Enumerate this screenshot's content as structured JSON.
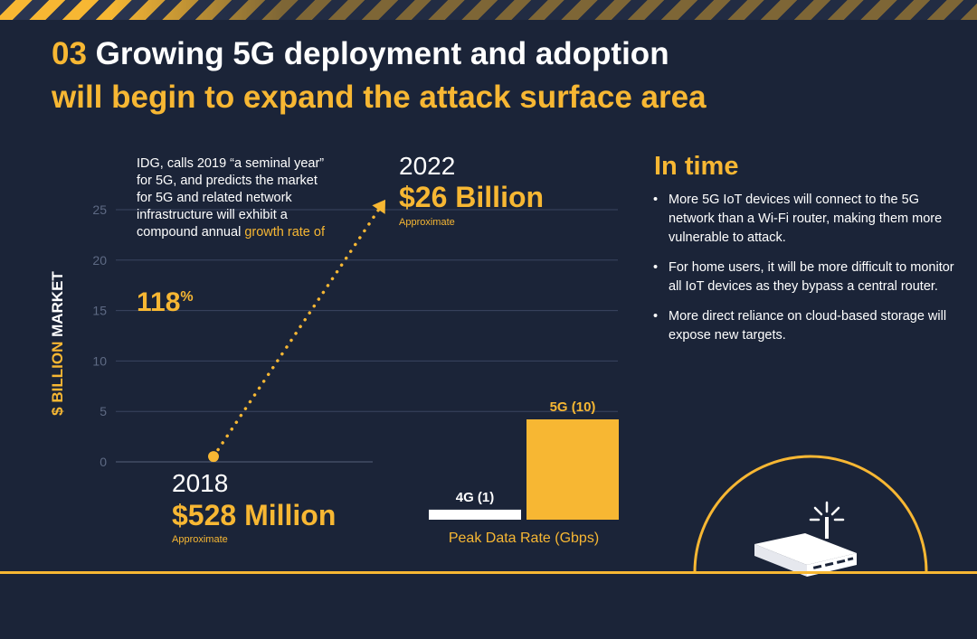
{
  "header": {
    "number": "03",
    "title_line1": "Growing 5G deployment and adoption",
    "title_line2": "will begin to expand the attack surface area"
  },
  "intro": {
    "text": "IDG, calls 2019 “a seminal year” for 5G, and predicts the market for 5G and related network infrastructure will exhibit a compound annual",
    "highlight": "growth rate of",
    "rate_value": "118",
    "rate_unit": "%"
  },
  "market": {
    "ylabel_prefix": "$ BILLION",
    "ylabel_suffix": "MARKET",
    "start_year": "2018",
    "start_amount": "$528 Million",
    "start_note": "Approximate",
    "end_year": "2022",
    "end_amount": "$26 Billion",
    "end_note": "Approximate"
  },
  "peak_rate": {
    "axis_label": "Peak Data Rate (Gbps)"
  },
  "in_time": {
    "heading": "In time",
    "bullets": [
      "More 5G IoT devices will connect to the 5G network than a Wi-Fi router, making them more vulnerable to attack.",
      "For home users, it will be more difficult to monitor all IoT devices as they bypass a central router.",
      "More direct reliance on cloud-based storage will expose new targets."
    ]
  },
  "colors": {
    "background": "#1b2438",
    "accent": "#f7b733",
    "text": "#ffffff",
    "gridline": "#3a4560",
    "tick_text": "#5e6a84"
  },
  "icons": [
    "router-icon",
    "signal-arc",
    "hazard-stripe"
  ],
  "chart_data": [
    {
      "type": "line",
      "ylabel": "$ BILLION MARKET",
      "x": [
        "2018",
        "2022"
      ],
      "series": [
        {
          "values": [
            0.528,
            26
          ]
        }
      ],
      "yticks": [
        0,
        5,
        10,
        15,
        20,
        25
      ],
      "ylim": [
        0,
        25
      ],
      "grid": true,
      "style": "dotted-arrow"
    },
    {
      "type": "bar",
      "xlabel": "Peak Data Rate (Gbps)",
      "categories": [
        "4G",
        "5G"
      ],
      "values": [
        1,
        10
      ],
      "data_labels": [
        "4G (1)",
        "5G (10)"
      ]
    }
  ]
}
